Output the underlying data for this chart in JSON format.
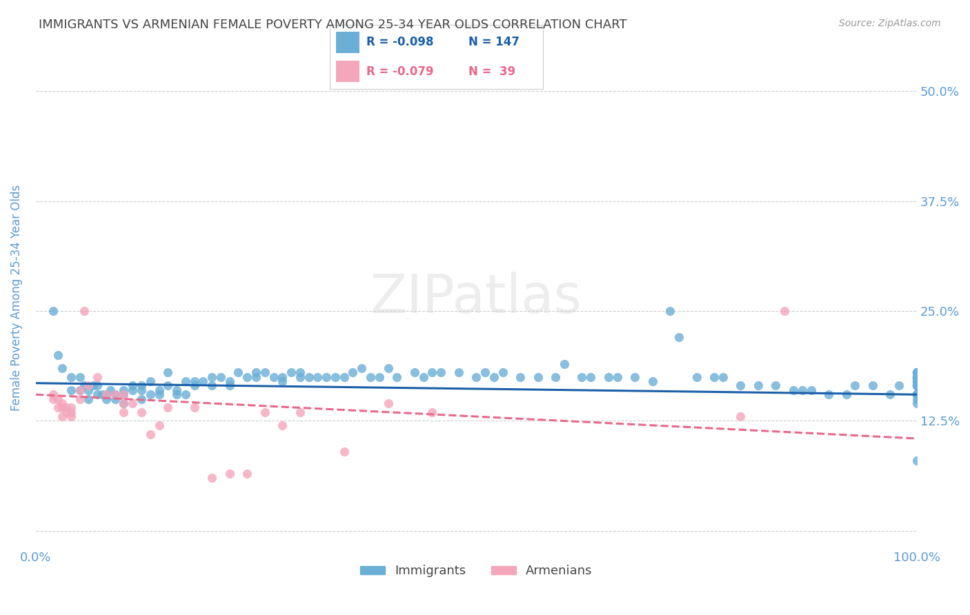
{
  "title": "IMMIGRANTS VS ARMENIAN FEMALE POVERTY AMONG 25-34 YEAR OLDS CORRELATION CHART",
  "source": "Source: ZipAtlas.com",
  "ylabel": "Female Poverty Among 25-34 Year Olds",
  "xlim": [
    0.0,
    1.0
  ],
  "ylim": [
    -0.02,
    0.55
  ],
  "xticks": [
    0.0,
    0.25,
    0.5,
    0.75,
    1.0
  ],
  "xticklabels": [
    "0.0%",
    "",
    "",
    "",
    "100.0%"
  ],
  "ytick_positions": [
    0.0,
    0.125,
    0.25,
    0.375,
    0.5
  ],
  "ytick_labels": [
    "",
    "12.5%",
    "25.0%",
    "37.5%",
    "50.0%"
  ],
  "watermark": "ZIPatlas",
  "legend_r_blue": "R = -0.098",
  "legend_n_blue": "N = 147",
  "legend_r_pink": "R = -0.079",
  "legend_n_pink": "N =  39",
  "blue_color": "#6baed6",
  "pink_color": "#f4a6bb",
  "blue_line_color": "#1a5fa8",
  "pink_line_color": "#e8688a",
  "title_color": "#444444",
  "tick_label_color": "#5b9bd5",
  "immigrants_scatter_x": [
    0.02,
    0.025,
    0.03,
    0.04,
    0.04,
    0.05,
    0.05,
    0.055,
    0.06,
    0.06,
    0.065,
    0.07,
    0.07,
    0.075,
    0.08,
    0.08,
    0.085,
    0.09,
    0.09,
    0.1,
    0.1,
    0.1,
    0.11,
    0.11,
    0.12,
    0.12,
    0.12,
    0.13,
    0.13,
    0.14,
    0.14,
    0.15,
    0.15,
    0.16,
    0.16,
    0.17,
    0.17,
    0.18,
    0.18,
    0.19,
    0.2,
    0.2,
    0.21,
    0.22,
    0.22,
    0.23,
    0.24,
    0.25,
    0.25,
    0.26,
    0.27,
    0.28,
    0.28,
    0.29,
    0.3,
    0.3,
    0.31,
    0.32,
    0.33,
    0.34,
    0.35,
    0.36,
    0.37,
    0.38,
    0.39,
    0.4,
    0.41,
    0.43,
    0.44,
    0.45,
    0.46,
    0.48,
    0.5,
    0.51,
    0.52,
    0.53,
    0.55,
    0.57,
    0.59,
    0.6,
    0.62,
    0.63,
    0.65,
    0.66,
    0.68,
    0.7,
    0.72,
    0.73,
    0.75,
    0.77,
    0.78,
    0.8,
    0.82,
    0.84,
    0.86,
    0.87,
    0.88,
    0.9,
    0.92,
    0.93,
    0.95,
    0.97,
    0.98,
    1.0,
    1.0,
    1.0,
    1.0,
    1.0,
    1.0,
    1.0,
    1.0,
    1.0,
    1.0,
    1.0,
    1.0,
    1.0,
    1.0,
    1.0,
    1.0,
    1.0,
    1.0,
    1.0,
    1.0,
    1.0,
    1.0,
    1.0,
    1.0,
    1.0,
    1.0,
    1.0,
    1.0,
    1.0,
    1.0,
    1.0,
    1.0,
    1.0,
    1.0,
    1.0,
    1.0,
    1.0,
    1.0,
    1.0,
    1.0,
    1.0,
    1.0,
    1.0,
    1.0
  ],
  "immigrants_scatter_y": [
    0.25,
    0.2,
    0.185,
    0.175,
    0.16,
    0.175,
    0.16,
    0.165,
    0.16,
    0.15,
    0.165,
    0.165,
    0.155,
    0.155,
    0.155,
    0.15,
    0.16,
    0.155,
    0.15,
    0.155,
    0.16,
    0.145,
    0.165,
    0.16,
    0.165,
    0.16,
    0.15,
    0.17,
    0.155,
    0.16,
    0.155,
    0.18,
    0.165,
    0.155,
    0.16,
    0.17,
    0.155,
    0.17,
    0.165,
    0.17,
    0.175,
    0.165,
    0.175,
    0.165,
    0.17,
    0.18,
    0.175,
    0.175,
    0.18,
    0.18,
    0.175,
    0.175,
    0.17,
    0.18,
    0.175,
    0.18,
    0.175,
    0.175,
    0.175,
    0.175,
    0.175,
    0.18,
    0.185,
    0.175,
    0.175,
    0.185,
    0.175,
    0.18,
    0.175,
    0.18,
    0.18,
    0.18,
    0.175,
    0.18,
    0.175,
    0.18,
    0.175,
    0.175,
    0.175,
    0.19,
    0.175,
    0.175,
    0.175,
    0.175,
    0.175,
    0.17,
    0.25,
    0.22,
    0.175,
    0.175,
    0.175,
    0.165,
    0.165,
    0.165,
    0.16,
    0.16,
    0.16,
    0.155,
    0.155,
    0.165,
    0.165,
    0.155,
    0.165,
    0.175,
    0.17,
    0.175,
    0.165,
    0.175,
    0.165,
    0.165,
    0.17,
    0.17,
    0.18,
    0.175,
    0.165,
    0.175,
    0.175,
    0.18,
    0.18,
    0.17,
    0.175,
    0.175,
    0.17,
    0.18,
    0.175,
    0.18,
    0.175,
    0.18,
    0.155,
    0.155,
    0.165,
    0.165,
    0.155,
    0.165,
    0.165,
    0.165,
    0.165,
    0.155,
    0.155,
    0.155,
    0.155,
    0.15,
    0.155,
    0.155,
    0.145,
    0.175,
    0.08
  ],
  "armenians_scatter_x": [
    0.02,
    0.02,
    0.025,
    0.025,
    0.03,
    0.03,
    0.03,
    0.035,
    0.035,
    0.04,
    0.04,
    0.04,
    0.05,
    0.05,
    0.055,
    0.06,
    0.07,
    0.08,
    0.09,
    0.1,
    0.1,
    0.1,
    0.11,
    0.12,
    0.13,
    0.14,
    0.15,
    0.18,
    0.2,
    0.22,
    0.24,
    0.26,
    0.28,
    0.3,
    0.35,
    0.4,
    0.45,
    0.8,
    0.85
  ],
  "armenians_scatter_y": [
    0.155,
    0.15,
    0.15,
    0.14,
    0.145,
    0.14,
    0.13,
    0.14,
    0.135,
    0.14,
    0.135,
    0.13,
    0.16,
    0.15,
    0.25,
    0.165,
    0.175,
    0.155,
    0.155,
    0.155,
    0.145,
    0.135,
    0.145,
    0.135,
    0.11,
    0.12,
    0.14,
    0.14,
    0.06,
    0.065,
    0.065,
    0.135,
    0.12,
    0.135,
    0.09,
    0.145,
    0.135,
    0.13,
    0.25
  ],
  "blue_trend_x": [
    0.0,
    1.0
  ],
  "blue_trend_y": [
    0.168,
    0.155
  ],
  "pink_trend_x": [
    0.0,
    1.0
  ],
  "pink_trend_y": [
    0.155,
    0.105
  ],
  "grid_color": "#cccccc",
  "background_color": "#ffffff"
}
